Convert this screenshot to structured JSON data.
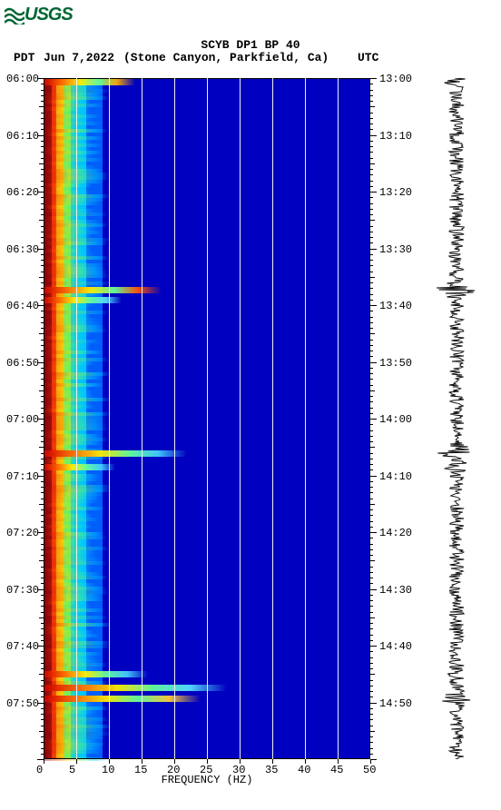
{
  "logo": {
    "text": "USGS",
    "color": "#006633"
  },
  "header": {
    "title": "SCYB DP1 BP 40",
    "tz_left": "PDT",
    "date": "Jun 7,2022",
    "location": "(Stone Canyon, Parkfield, Ca)",
    "tz_right": "UTC"
  },
  "spectrogram": {
    "type": "spectrogram",
    "background_color": "#ffffff",
    "colormap_low": "#000080",
    "colormap_mid": "#00c0ff",
    "colormap_high": "#ffff00",
    "colormap_peak": "#cc0000",
    "grid_color": "#eeeeee",
    "x_axis": {
      "label": "FREQUENCY (HZ)",
      "min": 0,
      "max": 50,
      "tick_step": 5,
      "ticks": [
        "0",
        "5",
        "10",
        "15",
        "20",
        "25",
        "30",
        "35",
        "40",
        "45",
        "50"
      ]
    },
    "y_left_ticks": [
      "06:00",
      "06:10",
      "06:20",
      "06:30",
      "06:40",
      "06:50",
      "07:00",
      "07:10",
      "07:20",
      "07:30",
      "07:40",
      "07:50"
    ],
    "y_right_ticks": [
      "13:00",
      "13:10",
      "13:20",
      "13:30",
      "13:40",
      "13:50",
      "14:00",
      "14:10",
      "14:20",
      "14:30",
      "14:40",
      "14:50"
    ],
    "bands": [
      {
        "freq_from": 0,
        "freq_to": 1.2,
        "color": "#8b0000",
        "full_height": true
      },
      {
        "freq_from": 1.2,
        "freq_to": 2.0,
        "color": "#ff3300",
        "full_height": true
      },
      {
        "freq_from": 2.0,
        "freq_to": 3.0,
        "color": "#ffcc00",
        "full_height": true
      },
      {
        "freq_from": 3.0,
        "freq_to": 4.2,
        "color": "#66ff66",
        "full_height": true
      },
      {
        "freq_from": 4.2,
        "freq_to": 6.5,
        "color": "#00d0ff",
        "full_height": true
      },
      {
        "freq_from": 6.5,
        "freq_to": 9.0,
        "color": "#0066ff",
        "full_height": true
      }
    ],
    "events": [
      {
        "time_frac": 0.005,
        "freq_to": 14,
        "intensity": "#ffaa00"
      },
      {
        "time_frac": 0.31,
        "freq_to": 18,
        "intensity": "#ff5500"
      },
      {
        "time_frac": 0.325,
        "freq_to": 12,
        "intensity": "#55ddff"
      },
      {
        "time_frac": 0.55,
        "freq_to": 22,
        "intensity": "#44ccff"
      },
      {
        "time_frac": 0.57,
        "freq_to": 11,
        "intensity": "#44ccff"
      },
      {
        "time_frac": 0.875,
        "freq_to": 16,
        "intensity": "#44ccff"
      },
      {
        "time_frac": 0.895,
        "freq_to": 28,
        "intensity": "#55ddff"
      },
      {
        "time_frac": 0.91,
        "freq_to": 24,
        "intensity": "#ffcc33"
      }
    ]
  },
  "seismogram": {
    "color": "#000000",
    "base_amplitude": 0.32,
    "bursts": [
      {
        "time_frac": 0.005,
        "amp": 0.7
      },
      {
        "time_frac": 0.31,
        "amp": 0.95
      },
      {
        "time_frac": 0.55,
        "amp": 0.9
      },
      {
        "time_frac": 0.57,
        "amp": 0.6
      },
      {
        "time_frac": 0.875,
        "amp": 0.55
      },
      {
        "time_frac": 0.91,
        "amp": 0.85
      }
    ]
  }
}
